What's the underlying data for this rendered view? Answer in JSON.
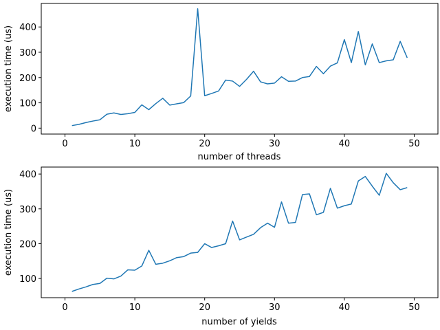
{
  "chart_data": [
    {
      "type": "line",
      "title": "",
      "xlabel": "number of threads",
      "ylabel": "execution time (us)",
      "xlim": [
        -3.4,
        53.4
      ],
      "ylim": [
        -23.5,
        493
      ],
      "xticks": [
        0,
        10,
        20,
        30,
        40,
        50
      ],
      "yticks": [
        0,
        100,
        200,
        300,
        400
      ],
      "grid": false,
      "color": "#1f77b4",
      "x": [
        1,
        2,
        3,
        4,
        5,
        6,
        7,
        8,
        9,
        10,
        11,
        12,
        13,
        14,
        15,
        16,
        17,
        18,
        19,
        20,
        21,
        22,
        23,
        24,
        25,
        26,
        27,
        28,
        29,
        30,
        31,
        32,
        33,
        34,
        35,
        36,
        37,
        38,
        39,
        40,
        41,
        42,
        43,
        44,
        45,
        46,
        47,
        48,
        49
      ],
      "values": [
        10,
        15,
        22,
        28,
        33,
        55,
        60,
        54,
        57,
        62,
        92,
        73,
        97,
        118,
        91,
        96,
        101,
        127,
        472,
        128,
        137,
        147,
        190,
        186,
        165,
        193,
        225,
        183,
        175,
        178,
        203,
        185,
        186,
        200,
        204,
        244,
        215,
        245,
        258,
        350,
        259,
        382,
        250,
        333,
        259,
        266,
        270,
        343,
        278
      ]
    },
    {
      "type": "line",
      "title": "",
      "xlabel": "number of yields",
      "ylabel": "execution time (us)",
      "xlim": [
        -3.4,
        53.4
      ],
      "ylim": [
        45,
        420
      ],
      "xticks": [
        0,
        10,
        20,
        30,
        40,
        50
      ],
      "yticks": [
        100,
        200,
        300,
        400
      ],
      "grid": false,
      "color": "#1f77b4",
      "x": [
        1,
        2,
        3,
        4,
        5,
        6,
        7,
        8,
        9,
        10,
        11,
        12,
        13,
        14,
        15,
        16,
        17,
        18,
        19,
        20,
        21,
        22,
        23,
        24,
        25,
        26,
        27,
        28,
        29,
        30,
        31,
        32,
        33,
        34,
        35,
        36,
        37,
        38,
        39,
        40,
        41,
        42,
        43,
        44,
        45,
        46,
        47,
        48,
        49
      ],
      "values": [
        63,
        70,
        76,
        83,
        86,
        101,
        99,
        107,
        125,
        124,
        136,
        181,
        141,
        144,
        151,
        160,
        163,
        173,
        175,
        200,
        189,
        194,
        200,
        265,
        211,
        219,
        227,
        246,
        259,
        247,
        320,
        259,
        261,
        341,
        343,
        283,
        290,
        359,
        302,
        309,
        314,
        380,
        393,
        365,
        339,
        402,
        375,
        355,
        361
      ]
    }
  ]
}
